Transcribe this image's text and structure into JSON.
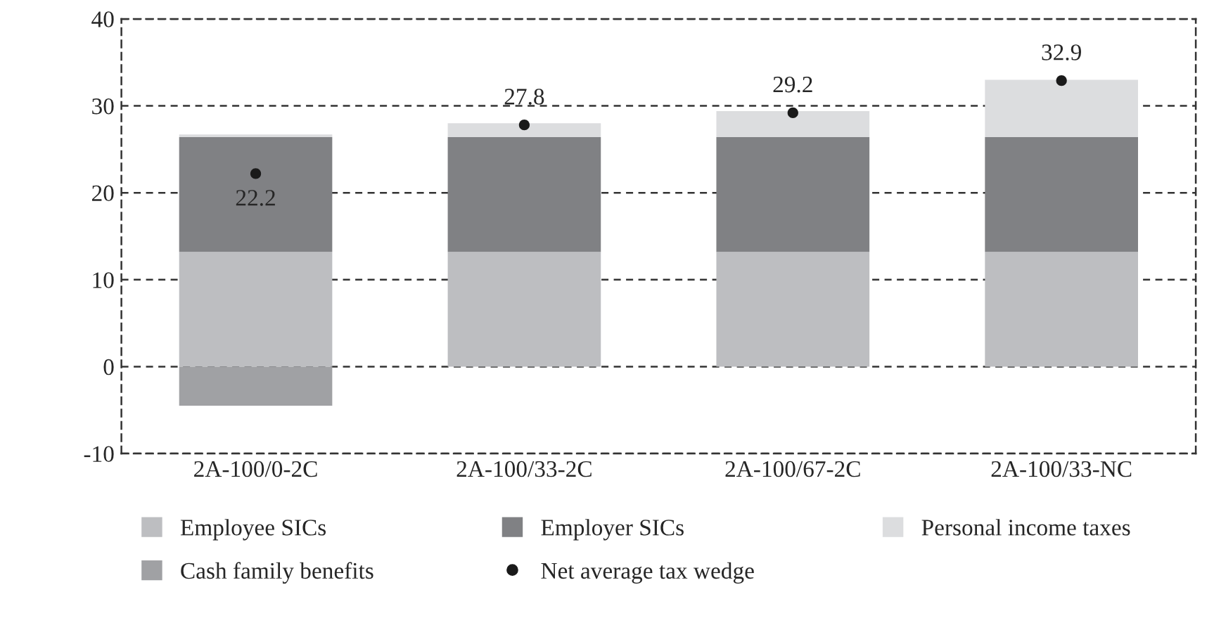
{
  "chart_data": {
    "type": "bar",
    "stacked": true,
    "categories": [
      "2A-100/0-2C",
      "2A-100/33-2C",
      "2A-100/67-2C",
      "2A-100/33-NC"
    ],
    "series": [
      {
        "name": "Employee SICs",
        "color": "#bdbec1",
        "values": [
          13.2,
          13.2,
          13.2,
          13.2
        ]
      },
      {
        "name": "Employer SICs",
        "color": "#808184",
        "values": [
          13.2,
          13.2,
          13.2,
          13.2
        ]
      },
      {
        "name": "Personal income taxes",
        "color": "#dcdddf",
        "values": [
          0.3,
          1.6,
          3.0,
          6.6
        ]
      },
      {
        "name": "Cash family benefits",
        "color": "#a0a1a4",
        "values": [
          -4.5,
          null,
          null,
          null
        ]
      },
      {
        "name": "Net average tax wedge",
        "type": "scatter",
        "color": "#1a1a1a",
        "marker": "circle",
        "values": [
          22.2,
          27.8,
          29.2,
          32.9
        ],
        "value_labels": [
          "22.2",
          "27.8",
          "29.2",
          "32.9"
        ]
      }
    ],
    "ylim": [
      -10,
      40
    ],
    "yticks": [
      -10,
      0,
      10,
      20,
      30,
      40
    ],
    "grid": "y",
    "legend": "bottom"
  }
}
